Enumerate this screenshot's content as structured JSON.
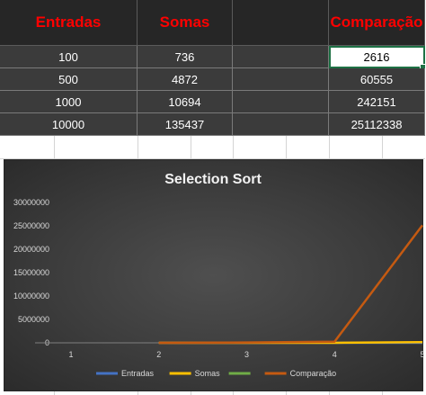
{
  "table": {
    "headers": [
      "Entradas",
      "Somas",
      "",
      "Comparação"
    ],
    "rows": [
      [
        "100",
        "736",
        "",
        "2616"
      ],
      [
        "500",
        "4872",
        "",
        "60555"
      ],
      [
        "1000",
        "10694",
        "",
        "242151"
      ],
      [
        "10000",
        "135437",
        "",
        "25112338"
      ]
    ],
    "selected_cell": "2616"
  },
  "colors": {
    "header_text": "#ff0000",
    "entradas": "#4472c4",
    "somas": "#ffc000",
    "empty_series": "#70ad47",
    "comparacao": "#c55a11"
  },
  "chart_data": {
    "type": "line",
    "title": "Selection Sort",
    "x": [
      1,
      2,
      3,
      4,
      5
    ],
    "ylim": [
      0,
      30000000
    ],
    "yticks": [
      "30000000",
      "25000000",
      "20000000",
      "15000000",
      "10000000",
      "5000000",
      "0"
    ],
    "xticks": [
      "1",
      "2",
      "3",
      "4",
      "5"
    ],
    "series": [
      {
        "name": "Entradas",
        "color": "#4472c4",
        "values": [
          null,
          100,
          500,
          1000,
          10000
        ]
      },
      {
        "name": "Somas",
        "color": "#ffc000",
        "values": [
          null,
          736,
          4872,
          10694,
          135437
        ]
      },
      {
        "name": "",
        "color": "#70ad47",
        "values": [
          null,
          null,
          null,
          null,
          null
        ]
      },
      {
        "name": "Comparação",
        "color": "#c55a11",
        "values": [
          null,
          2616,
          60555,
          242151,
          25112338
        ]
      }
    ],
    "legend": "bottom"
  }
}
